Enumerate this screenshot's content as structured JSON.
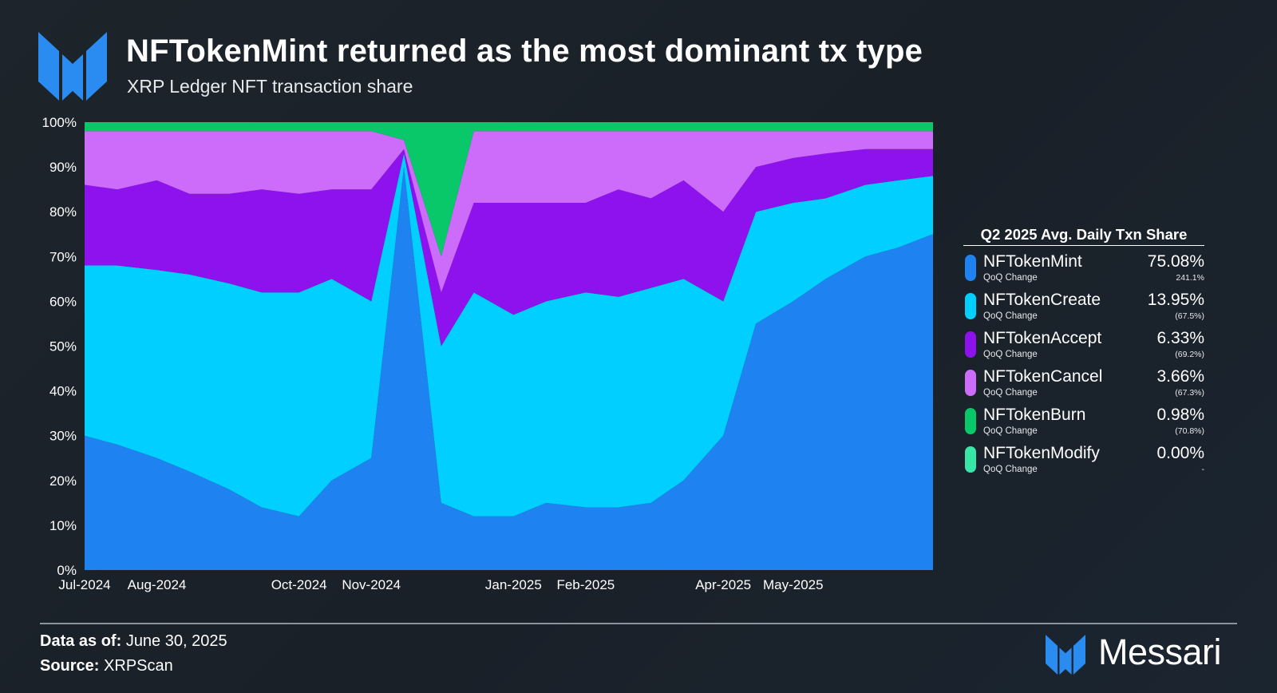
{
  "header": {
    "title": "NFTokenMint returned as the most dominant tx type",
    "subtitle": "XRP Ledger NFT transaction share"
  },
  "legend": {
    "title": "Q2 2025 Avg. Daily Txn Share",
    "items": [
      {
        "name": "NFTokenMint",
        "sub": "QoQ Change",
        "value": "75.08%",
        "change": "241.1%",
        "color": "#1e82f0"
      },
      {
        "name": "NFTokenCreate",
        "sub": "QoQ Change",
        "value": "13.95%",
        "change": "(67.5%)",
        "color": "#00cfff"
      },
      {
        "name": "NFTokenAccept",
        "sub": "QoQ Change",
        "value": "6.33%",
        "change": "(69.2%)",
        "color": "#8e12ee"
      },
      {
        "name": "NFTokenCancel",
        "sub": "QoQ Change",
        "value": "3.66%",
        "change": "(67.3%)",
        "color": "#cd6cfb"
      },
      {
        "name": "NFTokenBurn",
        "sub": "QoQ Change",
        "value": "0.98%",
        "change": "(70.8%)",
        "color": "#08c86a"
      },
      {
        "name": "NFTokenModify",
        "sub": "QoQ Change",
        "value": "0.00%",
        "change": "-",
        "color": "#38e6a8"
      }
    ]
  },
  "footer": {
    "data_label": "Data as of:",
    "data_value": "June 30, 2025",
    "source_label": "Source:",
    "source_value": "XRPScan",
    "brand": "Messari"
  },
  "chart_data": {
    "type": "area",
    "stacked": true,
    "percent": true,
    "ylim": [
      0,
      100
    ],
    "yticks": [
      "0%",
      "10%",
      "20%",
      "30%",
      "40%",
      "50%",
      "60%",
      "70%",
      "80%",
      "90%",
      "100%"
    ],
    "x_tick_labels": [
      "Jul-2024",
      "Aug-2024",
      "Oct-2024",
      "Nov-2024",
      "Jan-2025",
      "Feb-2025",
      "Apr-2025",
      "May-2025"
    ],
    "x_tick_dates": [
      "2024-07-01",
      "2024-08-01",
      "2024-10-01",
      "2024-11-01",
      "2025-01-01",
      "2025-02-01",
      "2025-04-01",
      "2025-05-01"
    ],
    "x": [
      "2024-07-01",
      "2024-07-15",
      "2024-08-01",
      "2024-08-15",
      "2024-09-01",
      "2024-09-15",
      "2024-10-01",
      "2024-10-15",
      "2024-11-01",
      "2024-11-15",
      "2024-12-01",
      "2024-12-15",
      "2025-01-01",
      "2025-01-15",
      "2025-02-01",
      "2025-02-15",
      "2025-03-01",
      "2025-03-15",
      "2025-04-01",
      "2025-04-15",
      "2025-05-01",
      "2025-05-15",
      "2025-06-01",
      "2025-06-15",
      "2025-06-30"
    ],
    "grid": false,
    "legend_position": "right",
    "series": [
      {
        "name": "NFTokenMint",
        "color": "#1e82f0",
        "values": [
          30,
          28,
          25,
          22,
          18,
          14,
          12,
          20,
          25,
          90,
          15,
          12,
          12,
          15,
          14,
          14,
          15,
          20,
          30,
          55,
          60,
          65,
          70,
          72,
          75
        ]
      },
      {
        "name": "NFTokenCreate",
        "color": "#00cfff",
        "values": [
          38,
          40,
          42,
          44,
          46,
          48,
          50,
          45,
          35,
          3,
          35,
          50,
          45,
          45,
          48,
          47,
          48,
          45,
          30,
          25,
          22,
          18,
          16,
          15,
          13
        ]
      },
      {
        "name": "NFTokenAccept",
        "color": "#8e12ee",
        "values": [
          18,
          17,
          20,
          18,
          20,
          23,
          22,
          20,
          25,
          1,
          12,
          20,
          25,
          22,
          20,
          24,
          20,
          22,
          20,
          10,
          10,
          10,
          8,
          7,
          6
        ]
      },
      {
        "name": "NFTokenCancel",
        "color": "#cd6cfb",
        "values": [
          12,
          13,
          11,
          14,
          14,
          13,
          14,
          13,
          13,
          2,
          8,
          16,
          16,
          16,
          16,
          13,
          15,
          11,
          18,
          8,
          6,
          5,
          4,
          4,
          4
        ]
      },
      {
        "name": "NFTokenBurn",
        "color": "#08c86a",
        "values": [
          2,
          2,
          2,
          2,
          2,
          2,
          2,
          2,
          2,
          4,
          30,
          2,
          2,
          2,
          2,
          2,
          2,
          2,
          2,
          2,
          2,
          2,
          2,
          2,
          2
        ]
      },
      {
        "name": "NFTokenModify",
        "color": "#38e6a8",
        "values": [
          0,
          0,
          0,
          0,
          0,
          0,
          0,
          0,
          0,
          0,
          0,
          0,
          0,
          0,
          0,
          0,
          0,
          0,
          0,
          0,
          0,
          0,
          0,
          0,
          0
        ]
      }
    ]
  }
}
